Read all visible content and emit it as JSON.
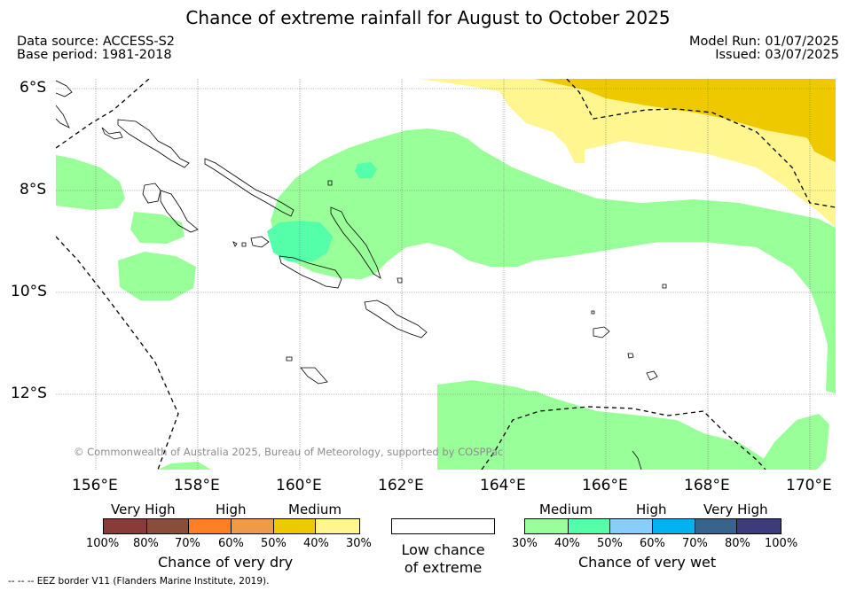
{
  "title": "Chance of extreme rainfall for August to October 2025",
  "meta": {
    "data_source": "Data source: ACCESS-S2",
    "base_period": "Base period: 1981-2018",
    "model_run": "Model Run: 01/07/2025",
    "issued": "Issued: 03/07/2025"
  },
  "map": {
    "lat_labels": [
      "6°S",
      "8°S",
      "10°S",
      "12°S"
    ],
    "lon_labels": [
      "156°E",
      "158°E",
      "160°E",
      "162°E",
      "164°E",
      "166°E",
      "168°E",
      "170°E"
    ],
    "copyright": "© Commonwealth of Australia 2025, Bureau of Meteorology, supported by COSPPac",
    "colors": {
      "medium_wet": "#99ff99",
      "high_wet": "#55ffaa",
      "medium_dry": "#fff68f",
      "high_dry": "#eec900",
      "coast": "#000000",
      "eez": "#000000"
    }
  },
  "legend": {
    "dry": {
      "title": "Chance of very dry",
      "categories": [
        "Very High",
        "High",
        "Medium"
      ],
      "ticks": [
        "100%",
        "80%",
        "70%",
        "60%",
        "50%",
        "40%",
        "30%"
      ],
      "colors": [
        "#8b3a3a",
        "#8b4c39",
        "#ff7f24",
        "#ee9a49",
        "#eec900",
        "#fff68f"
      ]
    },
    "low": {
      "title_line1": "Low chance",
      "title_line2": "of extreme",
      "color": "#ffffff"
    },
    "wet": {
      "title": "Chance of very wet",
      "categories": [
        "Medium",
        "High",
        "Very High"
      ],
      "ticks": [
        "30%",
        "40%",
        "50%",
        "60%",
        "70%",
        "80%",
        "100%"
      ],
      "colors": [
        "#99ff99",
        "#55ffaa",
        "#87cefa",
        "#00b2ee",
        "#36648b",
        "#3e3a7e"
      ]
    }
  },
  "eez_note": "-- -- -- EEZ border V11 (Flanders Marine Institute, 2019)."
}
